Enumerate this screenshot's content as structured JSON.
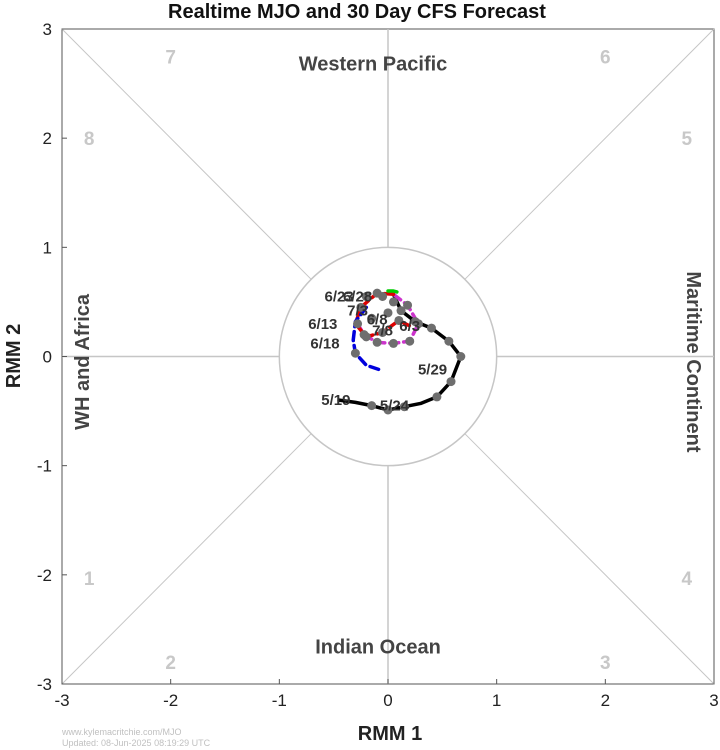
{
  "chart_data": {
    "type": "line",
    "title": "Realtime MJO and 30 Day CFS Forecast",
    "xlabel": "RMM 1",
    "ylabel": "RMM 2",
    "xlim": [
      -3,
      3
    ],
    "ylim": [
      -3,
      3
    ],
    "xticks": [
      "-3",
      "-2",
      "-1",
      "0",
      "1",
      "2",
      "3"
    ],
    "yticks": [
      "-3",
      "-2",
      "-1",
      "0",
      "1",
      "2",
      "3"
    ],
    "regions": {
      "top": "Western Pacific",
      "bottom": "Indian Ocean",
      "left": "WH and Africa",
      "right": "Maritime Continent"
    },
    "phase_labels": [
      {
        "text": "1",
        "x": -2.75,
        "y": -2.03
      },
      {
        "text": "2",
        "x": -2.0,
        "y": -2.8
      },
      {
        "text": "3",
        "x": 2.0,
        "y": -2.8
      },
      {
        "text": "4",
        "x": 2.75,
        "y": -2.03
      },
      {
        "text": "5",
        "x": 2.75,
        "y": 2.0
      },
      {
        "text": "6",
        "x": 2.0,
        "y": 2.75
      },
      {
        "text": "7",
        "x": -2.0,
        "y": 2.75
      },
      {
        "text": "8",
        "x": -2.75,
        "y": 2.0
      }
    ],
    "colors": {
      "observed": "#000000",
      "forecast_blue": "#0000dd",
      "forecast_magenta": "#cc33cc",
      "forecast_red": "#dd0000",
      "forecast_green": "#00cc00",
      "markers": "#6e6e6e",
      "grid": "#c6c6c6"
    },
    "series": [
      {
        "kind": "observed",
        "points": [
          [
            -0.45,
            -0.4
          ],
          [
            -0.3,
            -0.42
          ],
          [
            -0.15,
            -0.45
          ],
          [
            0.0,
            -0.49
          ],
          [
            0.15,
            -0.46
          ],
          [
            0.3,
            -0.43
          ],
          [
            0.45,
            -0.37
          ],
          [
            0.58,
            -0.23
          ],
          [
            0.67,
            0.0
          ],
          [
            0.56,
            0.14
          ],
          [
            0.4,
            0.26
          ],
          [
            0.25,
            0.32
          ],
          [
            0.12,
            0.42
          ],
          [
            0.05,
            0.57
          ]
        ]
      },
      {
        "kind": "forecast_magenta",
        "points": [
          [
            0.05,
            0.57
          ],
          [
            0.18,
            0.47
          ],
          [
            0.28,
            0.3
          ],
          [
            0.2,
            0.14
          ],
          [
            0.05,
            0.12
          ],
          [
            -0.1,
            0.13
          ],
          [
            -0.22,
            0.2
          ],
          [
            -0.28,
            0.3
          ]
        ]
      },
      {
        "kind": "forecast_red",
        "points": [
          [
            0.05,
            0.57
          ],
          [
            -0.1,
            0.58
          ],
          [
            -0.25,
            0.45
          ],
          [
            -0.3,
            0.3
          ],
          [
            -0.2,
            0.18
          ],
          [
            -0.05,
            0.22
          ],
          [
            0.1,
            0.33
          ],
          [
            0.2,
            0.28
          ]
        ]
      },
      {
        "kind": "forecast_blue",
        "points": [
          [
            -0.2,
            0.45
          ],
          [
            -0.3,
            0.32
          ],
          [
            -0.32,
            0.15
          ],
          [
            -0.3,
            0.03
          ],
          [
            -0.2,
            -0.08
          ],
          [
            -0.05,
            -0.13
          ]
        ]
      },
      {
        "kind": "forecast_green",
        "points": [
          [
            0.0,
            0.6
          ],
          [
            0.05,
            0.6
          ],
          [
            0.12,
            0.58
          ]
        ]
      }
    ],
    "markers": [
      [
        -0.15,
        -0.45
      ],
      [
        0.0,
        -0.49
      ],
      [
        0.15,
        -0.46
      ],
      [
        0.45,
        -0.37
      ],
      [
        0.58,
        -0.23
      ],
      [
        0.67,
        0.0
      ],
      [
        0.56,
        0.14
      ],
      [
        0.4,
        0.26
      ],
      [
        0.25,
        0.32
      ],
      [
        0.12,
        0.42
      ],
      [
        0.18,
        0.47
      ],
      [
        0.28,
        0.3
      ],
      [
        0.2,
        0.14
      ],
      [
        0.05,
        0.12
      ],
      [
        -0.1,
        0.13
      ],
      [
        -0.22,
        0.2
      ],
      [
        -0.28,
        0.3
      ],
      [
        -0.1,
        0.58
      ],
      [
        -0.25,
        0.45
      ],
      [
        -0.2,
        0.18
      ],
      [
        -0.05,
        0.22
      ],
      [
        0.1,
        0.33
      ],
      [
        -0.3,
        0.03
      ],
      [
        -0.15,
        0.35
      ],
      [
        0.0,
        0.4
      ],
      [
        0.05,
        0.5
      ],
      [
        -0.05,
        0.55
      ],
      [
        -0.2,
        0.55
      ]
    ],
    "date_labels": [
      {
        "text": "5/19",
        "x": -0.48,
        "y": -0.4
      },
      {
        "text": "5/24",
        "x": 0.06,
        "y": -0.45
      },
      {
        "text": "5/29",
        "x": 0.41,
        "y": -0.12
      },
      {
        "text": "6/3",
        "x": 0.2,
        "y": 0.28
      },
      {
        "text": "6/8",
        "x": -0.1,
        "y": 0.34
      },
      {
        "text": "6/13",
        "x": -0.6,
        "y": 0.3
      },
      {
        "text": "6/18",
        "x": -0.58,
        "y": 0.12
      },
      {
        "text": "6/23",
        "x": -0.45,
        "y": 0.55
      },
      {
        "text": "6/28",
        "x": -0.28,
        "y": 0.55
      },
      {
        "text": "7/3",
        "x": -0.28,
        "y": 0.42
      },
      {
        "text": "7/8",
        "x": -0.05,
        "y": 0.24
      }
    ],
    "grid": true,
    "unit_circle_radius": 1
  },
  "footer": {
    "url": "www.kylemacritchie.com/MJO",
    "updated": "Updated: 08-Jun-2025 08:19:29 UTC"
  }
}
